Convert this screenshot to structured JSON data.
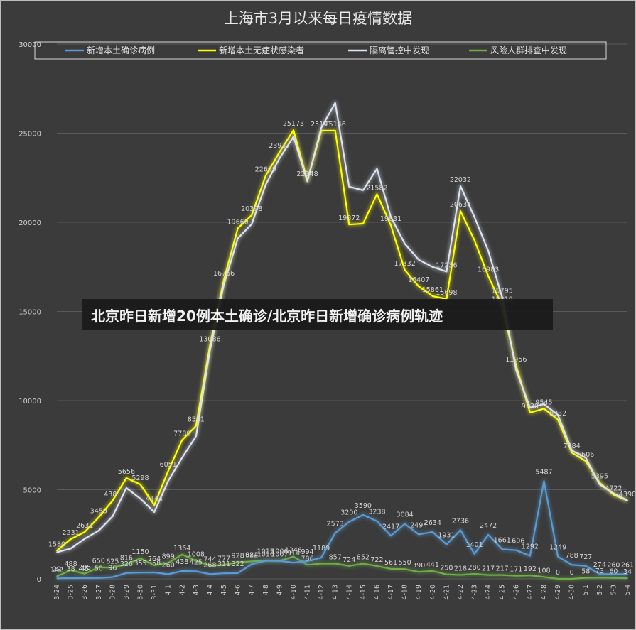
{
  "title": "上海市3月以来每日疫情数据",
  "banner": "北京昨日新增20例本土确诊/北京昨日新增确诊病例轨迹",
  "chart_data": {
    "type": "line",
    "title": "上海市3月以来每日疫情数据",
    "xlabel": "",
    "ylabel": "",
    "ylim": [
      0,
      30000
    ],
    "yticks": [
      0,
      5000,
      10000,
      15000,
      20000,
      25000,
      30000
    ],
    "grid": "horizontal",
    "legend_position": "top",
    "categories": [
      "3-24",
      "3-25",
      "3-26",
      "3-27",
      "3-28",
      "3-29",
      "3-30",
      "3-31",
      "4-1",
      "4-2",
      "4-3",
      "4-4",
      "4-5",
      "4-6",
      "4-7",
      "4-8",
      "4-9",
      "4-10",
      "4-11",
      "4-12",
      "4-13",
      "4-14",
      "4-15",
      "4-16",
      "4-17",
      "4-18",
      "4-19",
      "4-20",
      "4-21",
      "4-22",
      "4-23",
      "4-24",
      "4-25",
      "4-26",
      "4-27",
      "4-28",
      "4-29",
      "4-30",
      "5-1",
      "5-2",
      "5-3",
      "5-4"
    ],
    "series": [
      {
        "name": "新增本土确诊病例",
        "color": "#5b9bd5",
        "values": [
          29,
          38,
          45,
          50,
          96,
          326,
          355,
          358,
          260,
          438,
          425,
          268,
          311,
          322,
          824,
          1015,
          1006,
          914,
          994,
          1189,
          2573,
          3200,
          3590,
          3238,
          2417,
          3084,
          2494,
          2634,
          1931,
          2736,
          1401,
          2472,
          1661,
          1606,
          1292,
          5487,
          1249,
          788,
          727,
          274,
          260,
          261
        ],
        "labels": [
          "29",
          "38",
          "45",
          "50",
          "96",
          "326",
          "355",
          "358",
          "260",
          "438",
          "425",
          "268",
          "311",
          "322",
          "824",
          "1015",
          "1006",
          "914",
          "994",
          "1189",
          "2573",
          "3200",
          "3590",
          "3238",
          "2417",
          "3084",
          "2494",
          "2634",
          "1931",
          "2736",
          "1401",
          "2472",
          "1661",
          "1606",
          "1292",
          "5487",
          "1249",
          "788",
          "727",
          "274",
          "260",
          "261"
        ]
      },
      {
        "name": "新增本土无症状感染者",
        "color": "#ffff00",
        "values": [
          1580,
          2231,
          2631,
          3450,
          4381,
          5656,
          5298,
          4144,
          6051,
          7788,
          8581,
          13086,
          16766,
          19660,
          20398,
          22609,
          23937,
          25173,
          22348,
          25141,
          25146,
          19872,
          19923,
          21582,
          19831,
          17332,
          16407,
          15861,
          15698,
          20634,
          19000,
          16983,
          15319,
          11956,
          9330,
          9545,
          8932,
          7084,
          6606,
          5395,
          4722,
          4390
        ],
        "labels": [
          "1580",
          "2231",
          "2631",
          "3450",
          "4381",
          "5656",
          "5298",
          "4144",
          "6051",
          "7788",
          "8581",
          "13086",
          "16766",
          "19660",
          "20398",
          "22609",
          "23937",
          "25173",
          "22348",
          "25141",
          "25146",
          "19872",
          "",
          "21582",
          "19831",
          "17332",
          "16407",
          "15861",
          "15698",
          "20634",
          "",
          "16983",
          "15319",
          "11956",
          "9330",
          "9545",
          "8932",
          "7084",
          "6606",
          "5395",
          "4722",
          "4390"
        ]
      },
      {
        "name": "隔离管控中发现",
        "color": "#dde3f0",
        "values": [
          1500,
          1700,
          2250,
          2700,
          3500,
          5100,
          4500,
          3750,
          5500,
          6800,
          8000,
          12800,
          16500,
          19100,
          19900,
          22100,
          23600,
          24800,
          22300,
          25300,
          26700,
          22000,
          21800,
          23000,
          20300,
          18800,
          17900,
          17500,
          17236,
          22032,
          20300,
          18400,
          15795,
          11700,
          9600,
          9800,
          9200,
          7200,
          6800,
          5300,
          4800,
          4400
        ],
        "labels": [
          "",
          "",
          "",
          "",
          "",
          "",
          "",
          "",
          "",
          "",
          "",
          "",
          "",
          "",
          "",
          "",
          "",
          "",
          "",
          "",
          "",
          "",
          "",
          "",
          "",
          "",
          "",
          "",
          "17236",
          "22032",
          "",
          "",
          "15795",
          "",
          "",
          "",
          "",
          "",
          "",
          "",
          "",
          ""
        ]
      },
      {
        "name": "风险人群排查中发现",
        "color": "#70ad47",
        "values": [
          142,
          488,
          285,
          650,
          625,
          816,
          1150,
          764,
          899,
          1364,
          1008,
          744,
          777,
          928,
          982,
          1016,
          1007,
          1246,
          786,
          857,
          857,
          724,
          852,
          722,
          561,
          550,
          390,
          441,
          250,
          218,
          280,
          217,
          217,
          171,
          192,
          108,
          0,
          0,
          58,
          73,
          60,
          34
        ],
        "labels": [
          "142",
          "488",
          "285",
          "650",
          "625",
          "816",
          "1150",
          "764",
          "899",
          "1364",
          "1008",
          "744",
          "777",
          "928",
          "982",
          "1016",
          "1007",
          "1246",
          "786",
          "",
          "857",
          "724",
          "852",
          "722",
          "561",
          "550",
          "390",
          "441",
          "250",
          "218",
          "280",
          "217",
          "217",
          "171",
          "192",
          "108",
          "0",
          "0",
          "58",
          "73",
          "60",
          "34"
        ]
      }
    ]
  }
}
